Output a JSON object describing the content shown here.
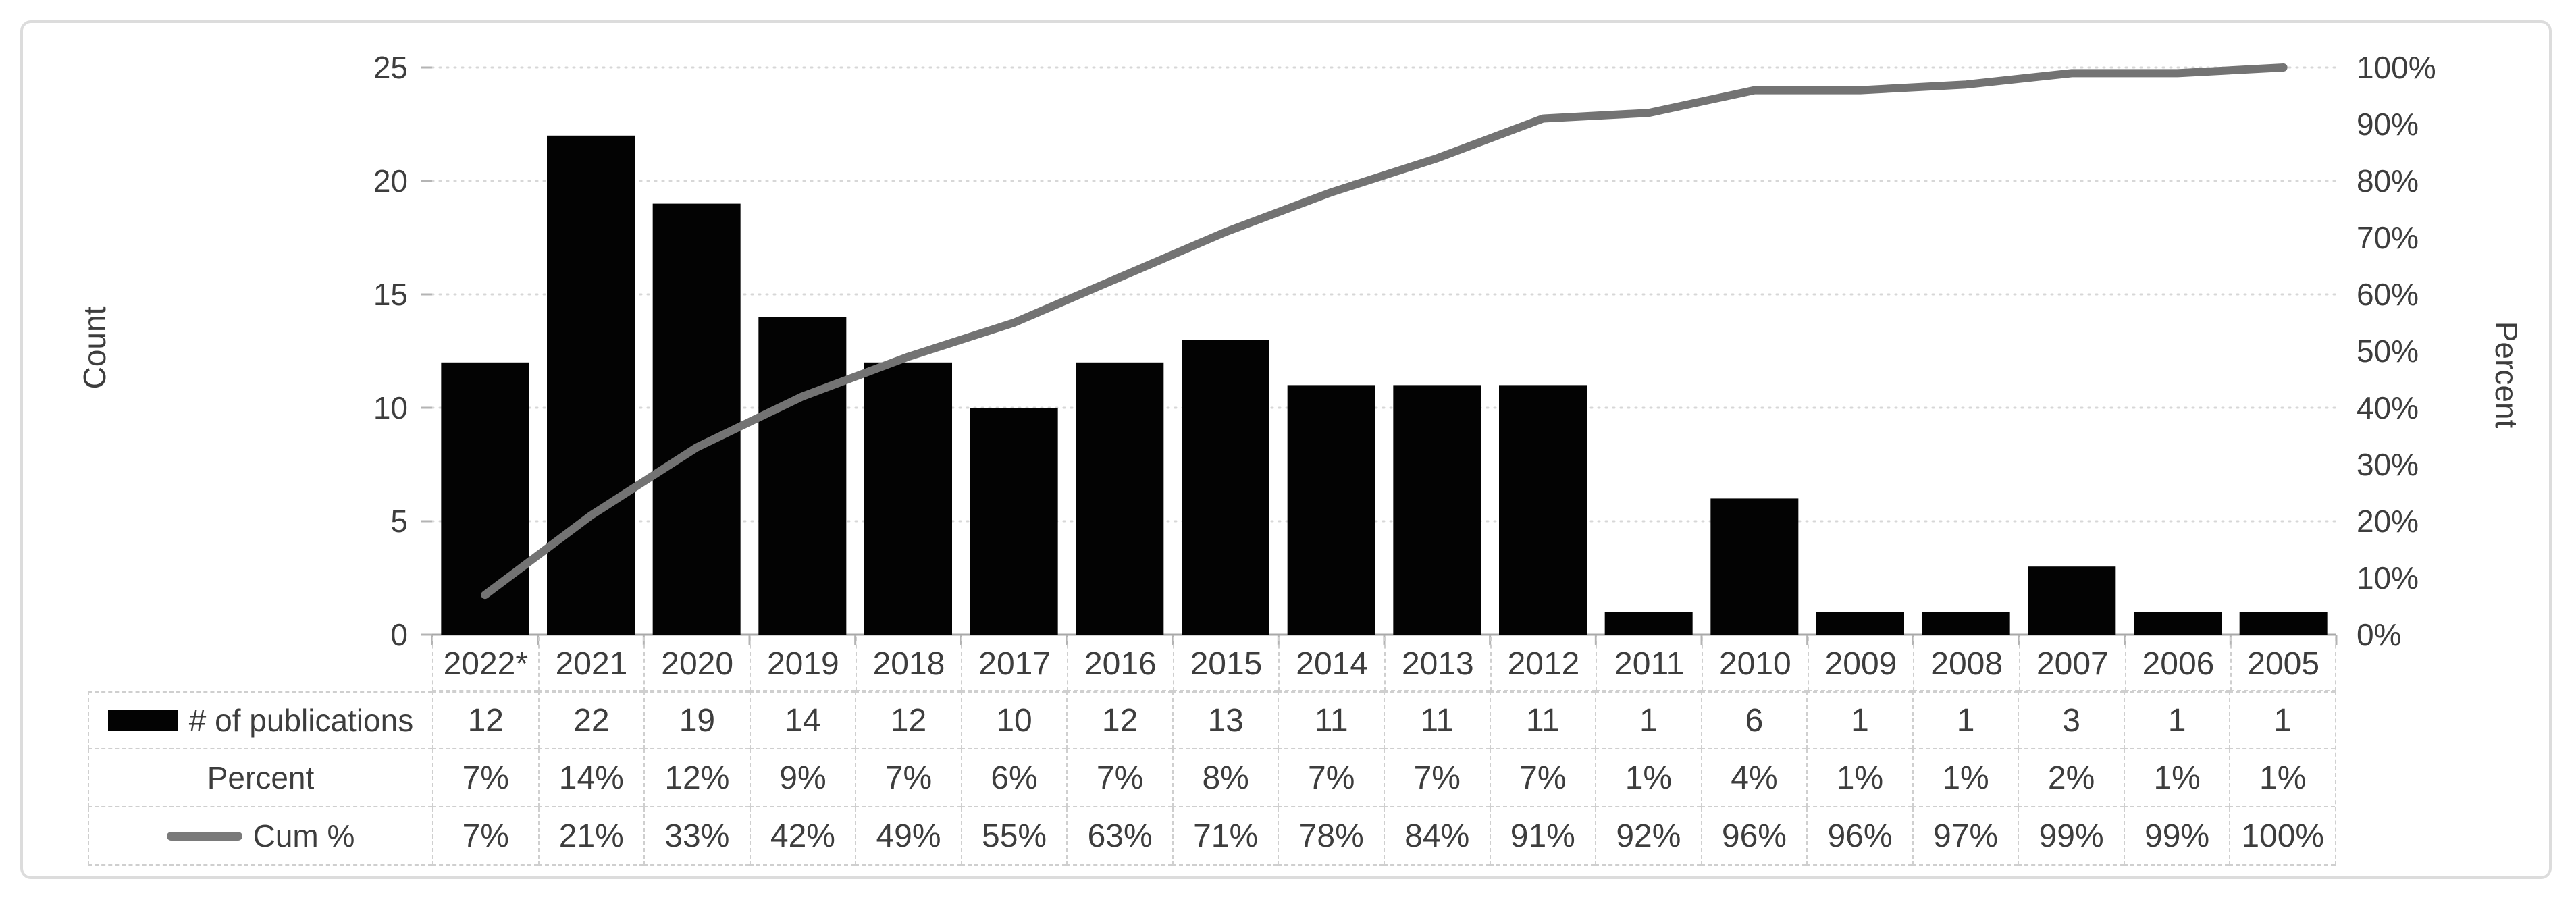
{
  "chart_data": {
    "type": "bar",
    "subtype": "pareto-combo-bar-line",
    "categories": [
      "2022*",
      "2021",
      "2020",
      "2019",
      "2018",
      "2017",
      "2016",
      "2015",
      "2014",
      "2013",
      "2012",
      "2011",
      "2010",
      "2009",
      "2008",
      "2007",
      "2006",
      "2005"
    ],
    "series": [
      {
        "name": "# of publications",
        "type": "bar",
        "axis": "left",
        "values": [
          12,
          22,
          19,
          14,
          12,
          10,
          12,
          13,
          11,
          11,
          11,
          1,
          6,
          1,
          1,
          3,
          1,
          1
        ]
      },
      {
        "name": "Cum %",
        "type": "line",
        "axis": "right",
        "values": [
          7,
          21,
          33,
          42,
          49,
          55,
          63,
          71,
          78,
          84,
          91,
          92,
          96,
          96,
          97,
          99,
          99,
          100
        ]
      }
    ],
    "left_axis": {
      "title": "Count",
      "min": 0,
      "max": 25,
      "ticks": [
        25,
        20,
        15,
        10,
        5,
        0
      ]
    },
    "right_axis": {
      "title": "Percent",
      "min": 0,
      "max": 100,
      "ticks": [
        "100%",
        "90%",
        "80%",
        "70%",
        "60%",
        "50%",
        "40%",
        "30%",
        "20%",
        "10%",
        "0%"
      ]
    },
    "grid": "horizontal dotted",
    "legend_position": "in-table-left-column"
  },
  "table": {
    "rows": [
      {
        "label": "# of publications",
        "swatch": "bar",
        "values": [
          "12",
          "22",
          "19",
          "14",
          "12",
          "10",
          "12",
          "13",
          "11",
          "11",
          "11",
          "1",
          "6",
          "1",
          "1",
          "3",
          "1",
          "1"
        ]
      },
      {
        "label": "Percent",
        "swatch": "none",
        "values": [
          "7%",
          "14%",
          "12%",
          "9%",
          "7%",
          "6%",
          "7%",
          "8%",
          "7%",
          "7%",
          "7%",
          "1%",
          "4%",
          "1%",
          "1%",
          "2%",
          "1%",
          "1%"
        ]
      },
      {
        "label": "Cum %",
        "swatch": "line",
        "values": [
          "7%",
          "21%",
          "33%",
          "42%",
          "49%",
          "55%",
          "63%",
          "71%",
          "78%",
          "84%",
          "91%",
          "92%",
          "96%",
          "96%",
          "97%",
          "99%",
          "99%",
          "100%"
        ]
      }
    ]
  },
  "colors": {
    "bar": "#030303",
    "cumulative_line": "#737373",
    "gridline": "#d7d7d7",
    "axis_line": "#a8a8a8",
    "text": "#3d3d3d",
    "figure_border": "#dcdcdc"
  }
}
